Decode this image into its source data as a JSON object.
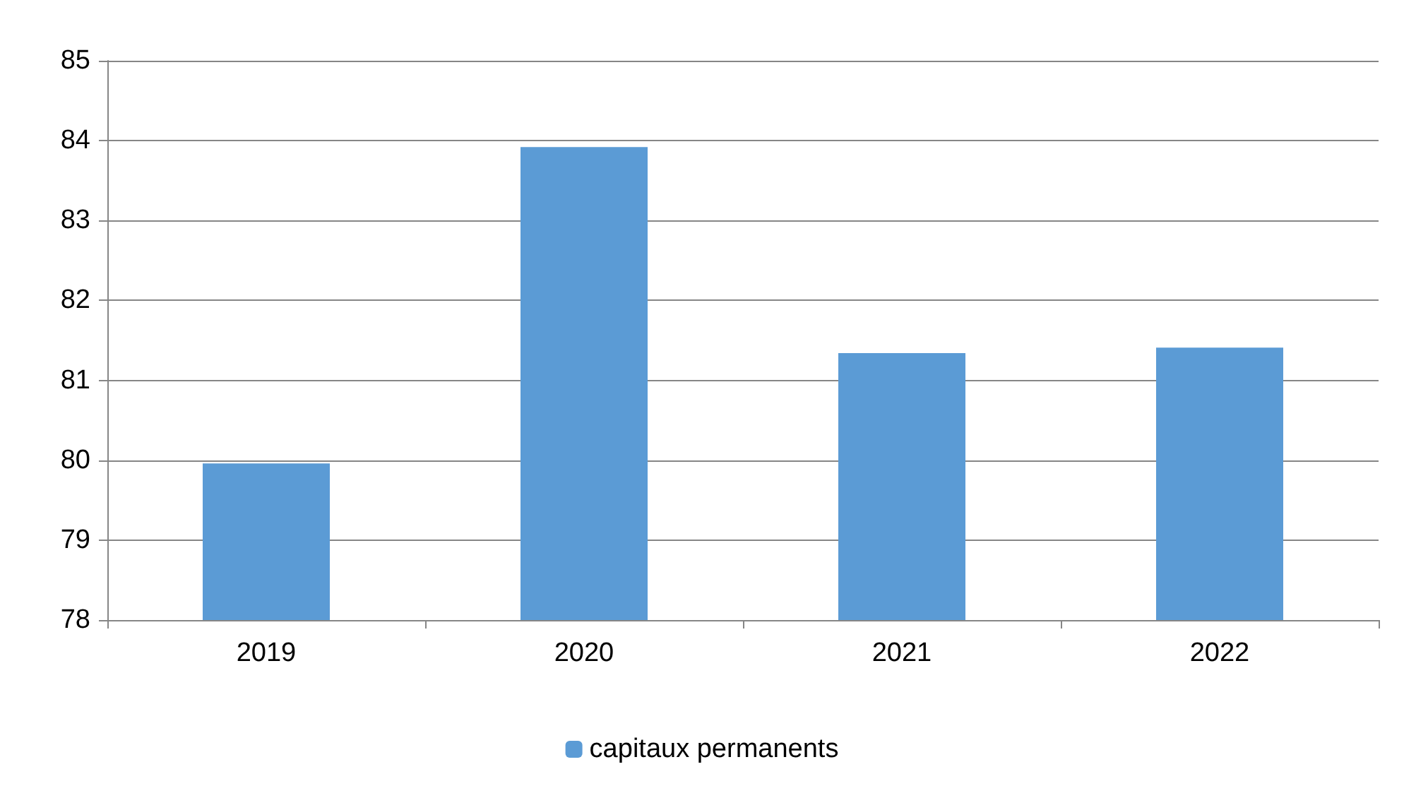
{
  "chart_data": {
    "type": "bar",
    "categories": [
      "2019",
      "2020",
      "2021",
      "2022"
    ],
    "series": [
      {
        "name": "capitaux permanents",
        "color": "#5b9bd5",
        "values": [
          79.96,
          83.92,
          81.34,
          81.41
        ]
      }
    ],
    "ylim": [
      78,
      85
    ],
    "yticks": [
      78,
      79,
      80,
      81,
      82,
      83,
      84,
      85
    ],
    "grid": "y",
    "legend": "bottom"
  }
}
